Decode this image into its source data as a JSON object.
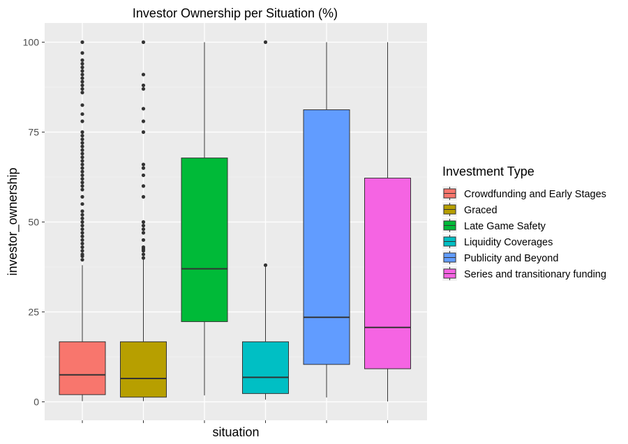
{
  "chart_data": {
    "type": "box",
    "title": "Investor Ownership per Situation (%)",
    "xlabel": "situation",
    "ylabel": "investor_ownership",
    "ylim": [
      -4,
      104
    ],
    "yticks": [
      0,
      25,
      50,
      75,
      100
    ],
    "grid": true,
    "legend": {
      "title": "Investment Type",
      "position": "right"
    },
    "series": [
      {
        "name": "Crowdfunding and Early Stages",
        "color": "#F8766D",
        "min": 0.2,
        "q1": 2,
        "median": 7.5,
        "q3": 16.7,
        "max": 38,
        "outliers": [
          39.5,
          40.5,
          41,
          42,
          43,
          44,
          45,
          46,
          47,
          48,
          49,
          50,
          51,
          52,
          53,
          55,
          57,
          59,
          60,
          61,
          62,
          63,
          64,
          65,
          66,
          67,
          68,
          69,
          70,
          71,
          72,
          73,
          74,
          75,
          78,
          80,
          82.5,
          86,
          87,
          88,
          89,
          90,
          91,
          92,
          93,
          94,
          95,
          97,
          100
        ]
      },
      {
        "name": "Graced",
        "color": "#B79F00",
        "min": 0.2,
        "q1": 1.3,
        "median": 6.5,
        "q3": 16.7,
        "max": 39.5,
        "outliers": [
          40,
          41,
          42,
          42.5,
          43,
          45,
          47,
          48,
          49,
          50,
          57,
          60,
          63,
          65,
          66,
          75,
          78,
          81.5,
          87,
          88,
          91,
          100
        ]
      },
      {
        "name": "Late Game Safety",
        "color": "#00BA38",
        "min": 1.8,
        "q1": 22.3,
        "median": 37,
        "q3": 67.8,
        "max": 100,
        "outliers": []
      },
      {
        "name": "Liquidity Coverages",
        "color": "#00BFC4",
        "min": 0.6,
        "q1": 2.3,
        "median": 6.8,
        "q3": 16.7,
        "max": 37.5,
        "outliers": [
          38,
          100
        ]
      },
      {
        "name": "Publicity and Beyond",
        "color": "#619CFF",
        "min": 1.2,
        "q1": 10.4,
        "median": 23.5,
        "q3": 81.2,
        "max": 100,
        "outliers": []
      },
      {
        "name": "Series and transitionary funding",
        "color": "#F564E3",
        "min": 0.1,
        "q1": 9.2,
        "median": 20.7,
        "q3": 62.2,
        "max": 100,
        "outliers": []
      }
    ]
  }
}
